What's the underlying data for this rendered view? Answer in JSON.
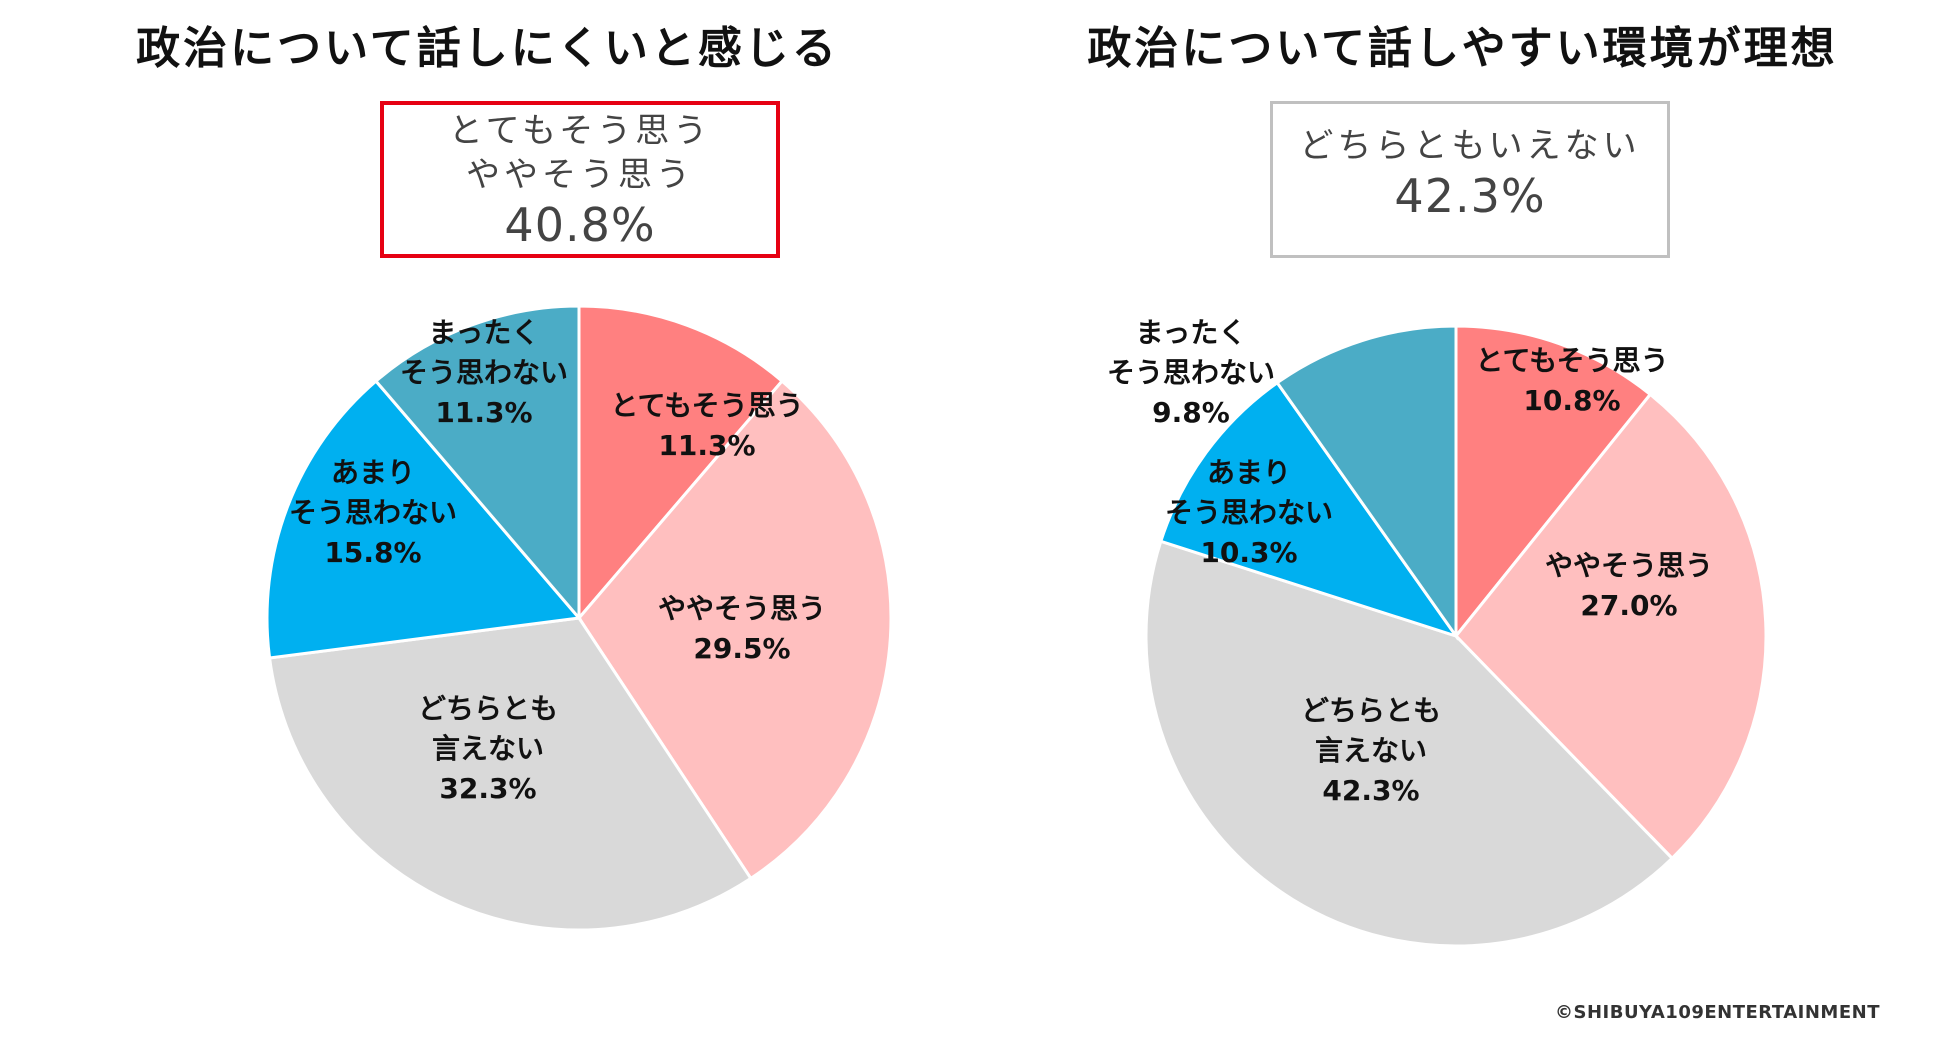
{
  "charts": [
    {
      "title": "政治について話しにくいと感じる",
      "summary": {
        "lines": [
          "とてもそう思う",
          "ややそう思う"
        ],
        "value": "40.8%",
        "border_color": "#e60012"
      }
    },
    {
      "title": "政治について話しやすい環境が理想",
      "summary": {
        "lines": [
          "どちらともいえない"
        ],
        "value": "42.3%",
        "border_color": "#c0c0c0"
      }
    }
  ],
  "chart_data": [
    {
      "type": "pie",
      "title": "政治について話しにくいと感じる",
      "slices": [
        {
          "label": "とてもそう思う",
          "value": 11.3,
          "color": "#ff8080"
        },
        {
          "label": "ややそう思う",
          "value": 29.5,
          "color": "#ffbfbf"
        },
        {
          "label": "どちらとも言えない",
          "value": 32.3,
          "color": "#d9d9d9"
        },
        {
          "label": "あまりそう思わない",
          "value": 15.8,
          "color": "#00b0f0"
        },
        {
          "label": "まったくそう思わない",
          "value": 11.3,
          "color": "#4bacc6"
        }
      ],
      "data_labels": [
        [
          "とてもそう思う",
          "11.3%"
        ],
        [
          "ややそう思う",
          "29.5%"
        ],
        [
          "どちらとも",
          "言えない",
          "32.3%"
        ],
        [
          "あまり",
          "そう思わない",
          "15.8%"
        ],
        [
          "まったく",
          "そう思わない",
          "11.3%"
        ]
      ]
    },
    {
      "type": "pie",
      "title": "政治について話しやすい環境が理想",
      "slices": [
        {
          "label": "とてもそう思う",
          "value": 10.8,
          "color": "#ff8080"
        },
        {
          "label": "ややそう思う",
          "value": 27.0,
          "color": "#ffbfbf"
        },
        {
          "label": "どちらとも言えない",
          "value": 42.3,
          "color": "#d9d9d9"
        },
        {
          "label": "あまりそう思わない",
          "value": 10.3,
          "color": "#00b0f0"
        },
        {
          "label": "まったくそう思わない",
          "value": 9.8,
          "color": "#4bacc6"
        }
      ],
      "data_labels": [
        [
          "とてもそう思う",
          "10.8%"
        ],
        [
          "ややそう思う",
          "27.0%"
        ],
        [
          "どちらとも",
          "言えない",
          "42.3%"
        ],
        [
          "あまり",
          "そう思わない",
          "10.3%"
        ],
        [
          "まったく",
          "そう思わない",
          "9.8%"
        ]
      ]
    }
  ],
  "copyright": "©SHIBUYA109ENTERTAINMENT"
}
